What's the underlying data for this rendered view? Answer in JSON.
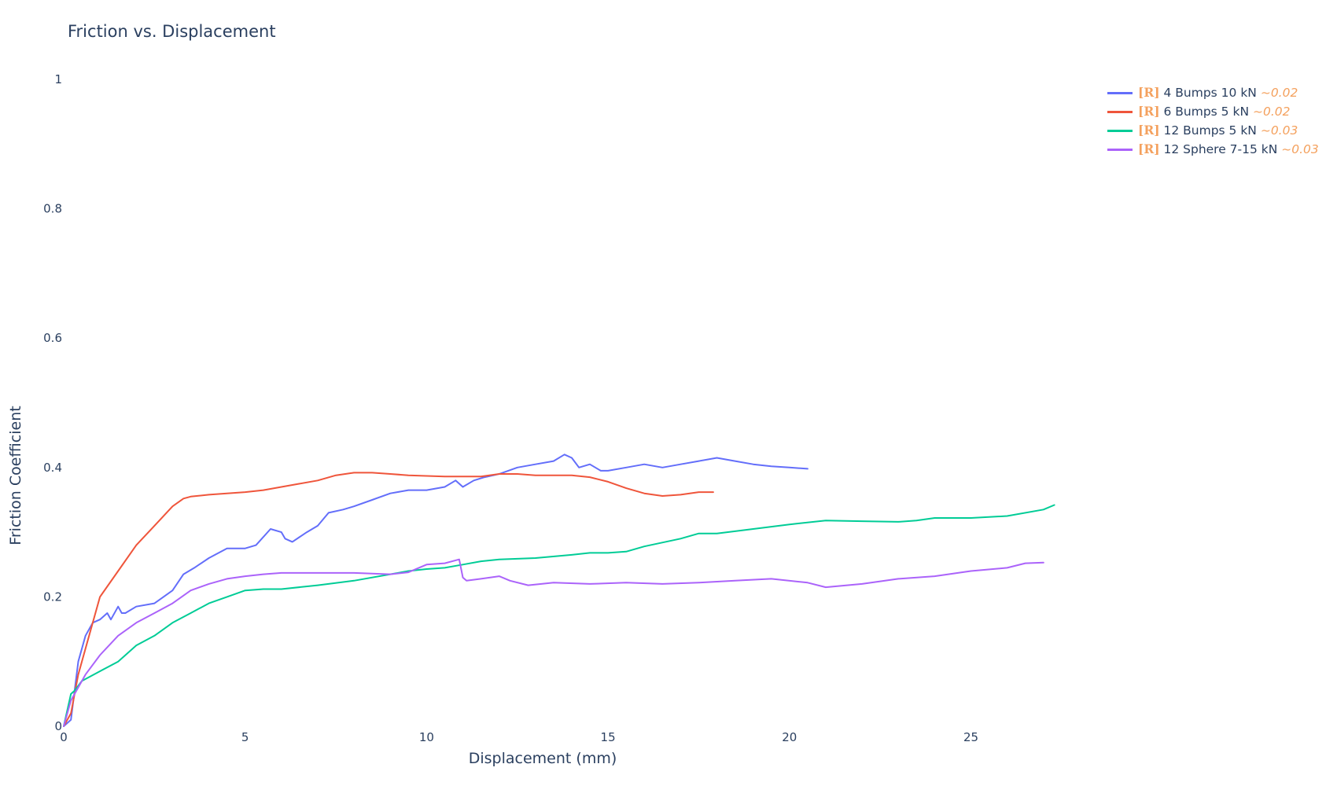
{
  "chart_data": {
    "type": "line",
    "title": "Friction vs. Displacement",
    "xlabel": "Displacement (mm)",
    "ylabel": "Friction Coefficient",
    "xlim": [
      0,
      28.5
    ],
    "ylim": [
      0,
      1
    ],
    "x_ticks": [
      0,
      5,
      10,
      15,
      20,
      25
    ],
    "y_ticks": [
      0,
      0.2,
      0.4,
      0.6,
      0.8,
      1
    ],
    "x_tick_labels": [
      "0",
      "5",
      "10",
      "15",
      "20",
      "25"
    ],
    "y_tick_labels": [
      "0",
      "0.2",
      "0.4",
      "0.6",
      "0.8",
      "1"
    ],
    "grid": false,
    "legend_position": "top-right",
    "series": [
      {
        "name": "4 Bumps 10 kN",
        "tag": "[R]",
        "approx": "~0.02",
        "color": "#636efa",
        "x": [
          0,
          0.2,
          0.4,
          0.6,
          0.8,
          1.0,
          1.2,
          1.3,
          1.5,
          1.6,
          1.7,
          2.0,
          2.5,
          3.0,
          3.3,
          3.6,
          4.0,
          4.5,
          5.0,
          5.3,
          5.7,
          6.0,
          6.1,
          6.3,
          6.7,
          7.0,
          7.3,
          7.7,
          8.0,
          8.5,
          9.0,
          9.5,
          10.0,
          10.5,
          10.8,
          11.0,
          11.3,
          11.6,
          12.0,
          12.5,
          13.0,
          13.5,
          13.8,
          14.0,
          14.2,
          14.5,
          14.8,
          15.0,
          15.5,
          16.0,
          16.5,
          17.0,
          17.5,
          18.0,
          18.5,
          19.0,
          19.5,
          20.0,
          20.5
        ],
        "y": [
          0,
          0.01,
          0.1,
          0.14,
          0.16,
          0.165,
          0.175,
          0.165,
          0.185,
          0.175,
          0.175,
          0.185,
          0.19,
          0.21,
          0.235,
          0.245,
          0.26,
          0.275,
          0.275,
          0.28,
          0.305,
          0.3,
          0.29,
          0.285,
          0.3,
          0.31,
          0.33,
          0.335,
          0.34,
          0.35,
          0.36,
          0.365,
          0.365,
          0.37,
          0.38,
          0.37,
          0.38,
          0.385,
          0.39,
          0.4,
          0.405,
          0.41,
          0.42,
          0.415,
          0.4,
          0.405,
          0.395,
          0.395,
          0.4,
          0.405,
          0.4,
          0.405,
          0.41,
          0.415,
          0.41,
          0.405,
          0.402,
          0.4,
          0.398
        ]
      },
      {
        "name": "6 Bumps 5 kN",
        "tag": "[R]",
        "approx": "~0.02",
        "color": "#ef553b",
        "x": [
          0,
          0.2,
          0.4,
          0.6,
          0.8,
          1.0,
          1.5,
          2.0,
          2.5,
          3.0,
          3.3,
          3.5,
          4.0,
          4.5,
          5.0,
          5.5,
          6.0,
          6.5,
          7.0,
          7.5,
          8.0,
          8.5,
          9.0,
          9.5,
          10.0,
          10.5,
          11.0,
          11.5,
          12.0,
          12.5,
          13.0,
          13.5,
          14.0,
          14.5,
          15.0,
          15.5,
          16.0,
          16.5,
          17.0,
          17.5,
          17.9
        ],
        "y": [
          0,
          0.02,
          0.08,
          0.12,
          0.16,
          0.2,
          0.24,
          0.28,
          0.31,
          0.34,
          0.352,
          0.355,
          0.358,
          0.36,
          0.362,
          0.365,
          0.37,
          0.375,
          0.38,
          0.388,
          0.392,
          0.392,
          0.39,
          0.388,
          0.387,
          0.386,
          0.386,
          0.386,
          0.39,
          0.39,
          0.388,
          0.388,
          0.388,
          0.385,
          0.378,
          0.368,
          0.36,
          0.356,
          0.358,
          0.362,
          0.362
        ]
      },
      {
        "name": "12 Bumps 5 kN",
        "tag": "[R]",
        "approx": "~0.03",
        "color": "#00cc96",
        "x": [
          0,
          0.2,
          0.3,
          0.5,
          1.0,
          1.5,
          2.0,
          2.5,
          3.0,
          3.5,
          4.0,
          4.5,
          5.0,
          5.5,
          6.0,
          7.0,
          8.0,
          9.0,
          9.5,
          10.0,
          10.5,
          11.0,
          11.5,
          12.0,
          13.0,
          14.0,
          14.5,
          15.0,
          15.5,
          16.0,
          17.0,
          17.5,
          18.0,
          19.0,
          20.0,
          21.0,
          22.0,
          23.0,
          23.5,
          24.0,
          25.0,
          26.0,
          27.0,
          27.3
        ],
        "y": [
          0,
          0.05,
          0.055,
          0.07,
          0.085,
          0.1,
          0.125,
          0.14,
          0.16,
          0.175,
          0.19,
          0.2,
          0.21,
          0.212,
          0.212,
          0.218,
          0.225,
          0.235,
          0.24,
          0.243,
          0.245,
          0.25,
          0.255,
          0.258,
          0.26,
          0.265,
          0.268,
          0.268,
          0.27,
          0.278,
          0.29,
          0.298,
          0.298,
          0.305,
          0.312,
          0.318,
          0.317,
          0.316,
          0.318,
          0.322,
          0.322,
          0.325,
          0.335,
          0.342
        ]
      },
      {
        "name": "12 Sphere 7-15 kN",
        "tag": "[R]",
        "approx": "~0.03",
        "color": "#ab63fa",
        "x": [
          0,
          0.2,
          0.4,
          0.6,
          1.0,
          1.5,
          2.0,
          2.5,
          3.0,
          3.5,
          4.0,
          4.5,
          5.0,
          5.5,
          6.0,
          7.0,
          8.0,
          9.0,
          9.5,
          10.0,
          10.5,
          10.9,
          11.0,
          11.1,
          11.5,
          12.0,
          12.3,
          12.8,
          13.5,
          14.5,
          15.5,
          16.5,
          17.5,
          18.5,
          19.5,
          20.5,
          21.0,
          22.0,
          23.0,
          24.0,
          25.0,
          26.0,
          26.5,
          27.0
        ],
        "y": [
          0,
          0.04,
          0.06,
          0.08,
          0.11,
          0.14,
          0.16,
          0.175,
          0.19,
          0.21,
          0.22,
          0.228,
          0.232,
          0.235,
          0.237,
          0.237,
          0.237,
          0.235,
          0.238,
          0.25,
          0.252,
          0.258,
          0.23,
          0.225,
          0.228,
          0.232,
          0.225,
          0.218,
          0.222,
          0.22,
          0.222,
          0.22,
          0.222,
          0.225,
          0.228,
          0.222,
          0.215,
          0.22,
          0.228,
          0.232,
          0.24,
          0.245,
          0.252,
          0.253
        ]
      }
    ]
  }
}
